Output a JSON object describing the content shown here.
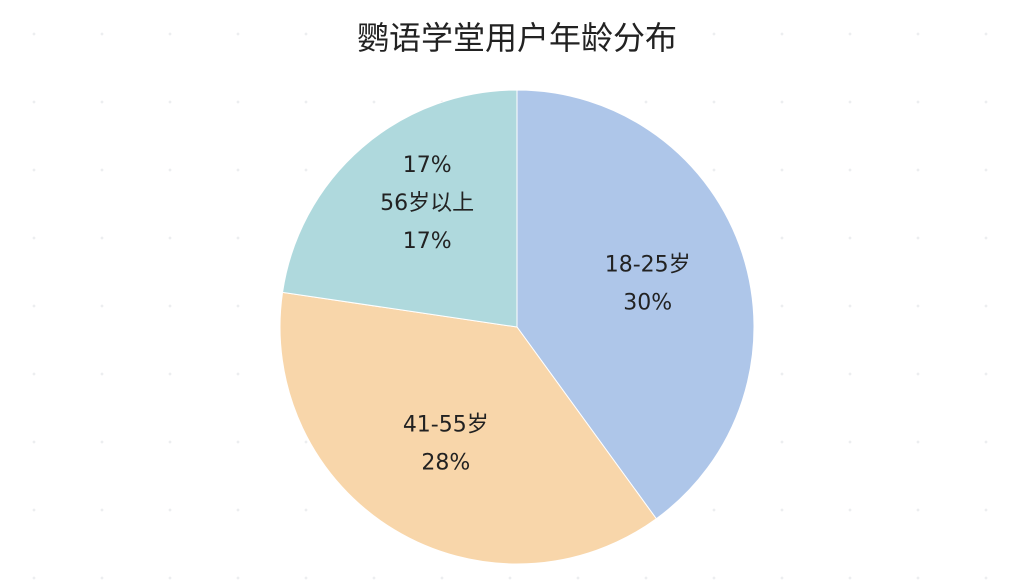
{
  "chart_data": {
    "type": "pie",
    "title": "鹦语学堂用户年龄分布",
    "categories": [
      "18-25岁",
      "41-55岁",
      "56岁以上"
    ],
    "values": [
      30,
      28,
      17
    ],
    "value_labels": [
      "30%",
      "28%",
      "17%"
    ],
    "colors": [
      "#aec6e9",
      "#f8d6aa",
      "#afd9dd"
    ],
    "annotations": [
      "17%"
    ]
  }
}
